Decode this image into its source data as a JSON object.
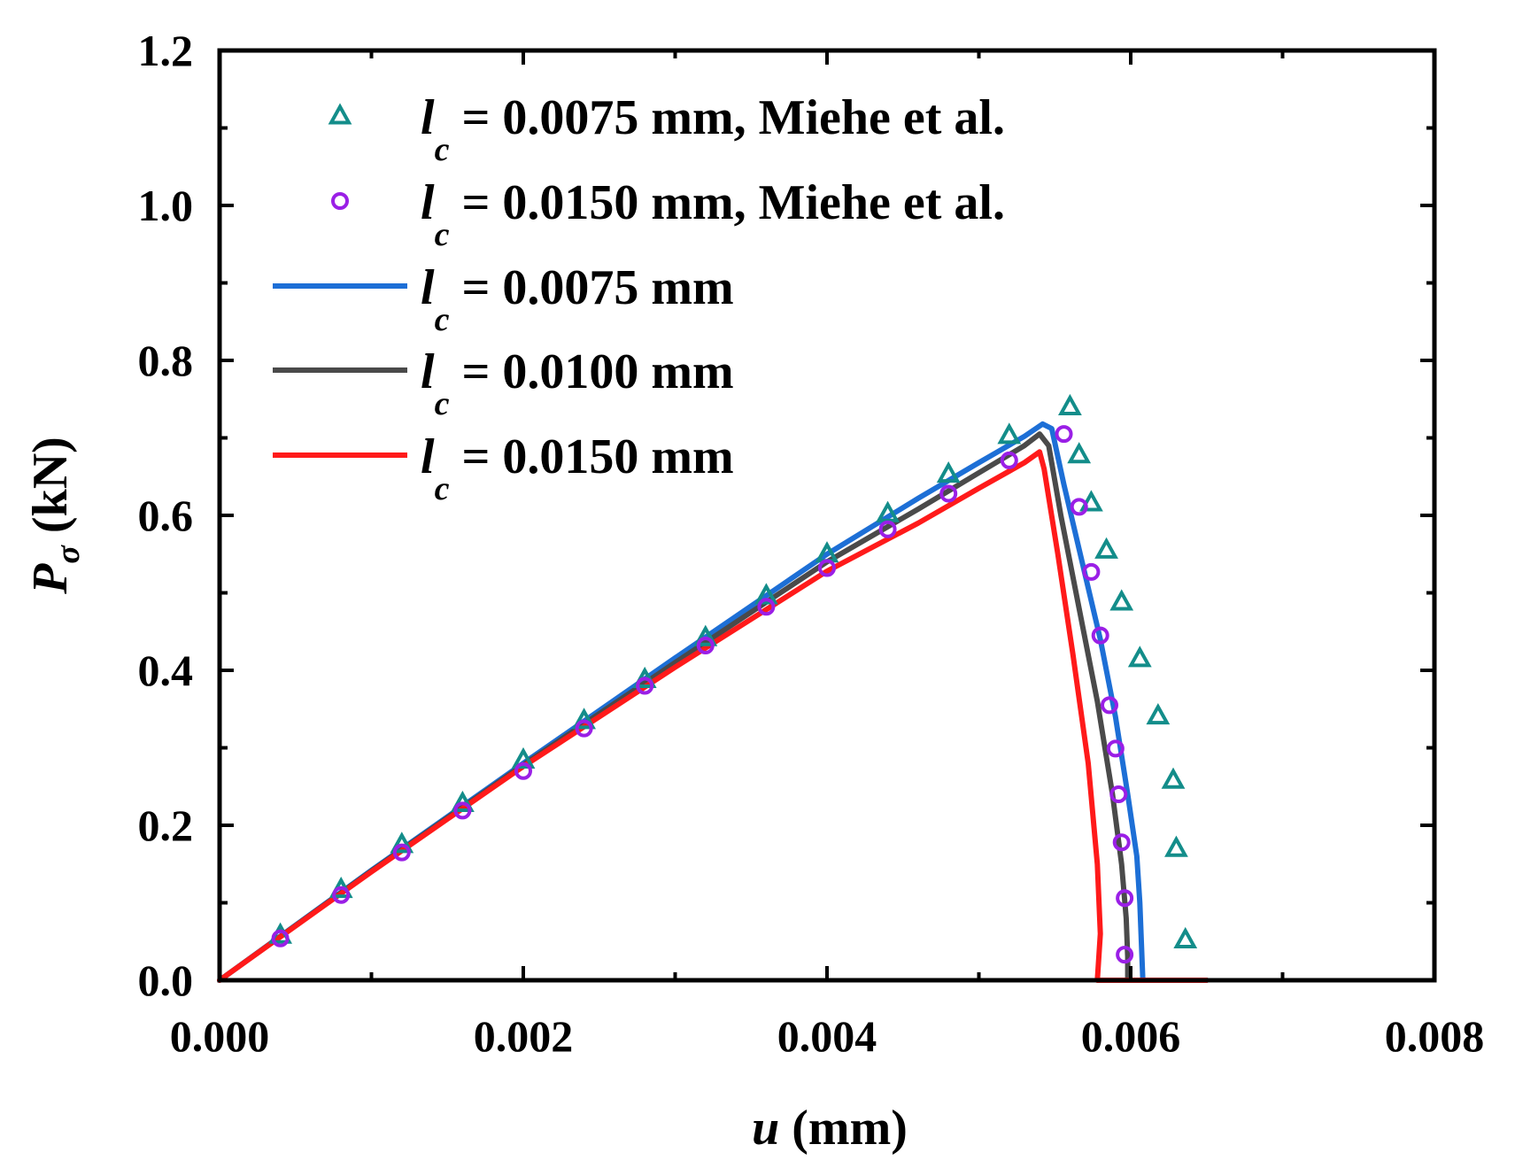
{
  "chart_data": {
    "type": "line",
    "title": "",
    "xlabel": {
      "var": "u",
      "unit": " (mm)"
    },
    "ylabel": {
      "var": "P",
      "sub": "σ",
      "unit": " (kN)"
    },
    "xlim": [
      0,
      0.008
    ],
    "ylim": [
      0,
      1.2
    ],
    "x_major_ticks": [
      0,
      0.002,
      0.004,
      0.006,
      0.008
    ],
    "x_tick_labels": [
      "0.000",
      "0.002",
      "0.004",
      "0.006",
      "0.008"
    ],
    "x_minor_ticks": [
      0.001,
      0.003,
      0.005,
      0.007
    ],
    "y_major_ticks": [
      0,
      0.2,
      0.4,
      0.6,
      0.8,
      1.0,
      1.2
    ],
    "y_tick_labels": [
      "0.0",
      "0.2",
      "0.4",
      "0.6",
      "0.8",
      "1.0",
      "1.2"
    ],
    "y_minor_ticks": [
      0.1,
      0.3,
      0.5,
      0.7,
      0.9,
      1.1
    ],
    "grid": false,
    "legend_position": "top-left",
    "series": [
      {
        "name": "lc_0.0075_miehe",
        "label_var": "l",
        "label_sub": "c",
        "label_text": " = 0.0075 mm, Miehe et al.",
        "kind": "scatter",
        "marker": "triangle",
        "color": "#138d8a",
        "points": [
          [
            0.0004,
            0.058
          ],
          [
            0.0008,
            0.117
          ],
          [
            0.0012,
            0.175
          ],
          [
            0.0016,
            0.228
          ],
          [
            0.002,
            0.284
          ],
          [
            0.0024,
            0.335
          ],
          [
            0.0028,
            0.388
          ],
          [
            0.0032,
            0.442
          ],
          [
            0.0036,
            0.496
          ],
          [
            0.004,
            0.55
          ],
          [
            0.0044,
            0.602
          ],
          [
            0.0048,
            0.653
          ],
          [
            0.0052,
            0.703
          ],
          [
            0.0056,
            0.74
          ],
          [
            0.00566,
            0.678
          ],
          [
            0.00574,
            0.616
          ],
          [
            0.00584,
            0.555
          ],
          [
            0.00594,
            0.488
          ],
          [
            0.00606,
            0.415
          ],
          [
            0.00618,
            0.341
          ],
          [
            0.00628,
            0.258
          ],
          [
            0.0063,
            0.17
          ],
          [
            0.00636,
            0.052
          ]
        ]
      },
      {
        "name": "lc_0.0150_miehe",
        "label_var": "l",
        "label_sub": "c",
        "label_text": " = 0.0150 mm, Miehe et al.",
        "kind": "scatter",
        "marker": "circle",
        "color": "#9a1fe6",
        "points": [
          [
            0.0004,
            0.054
          ],
          [
            0.0008,
            0.11
          ],
          [
            0.0012,
            0.165
          ],
          [
            0.0016,
            0.219
          ],
          [
            0.002,
            0.27
          ],
          [
            0.0024,
            0.325
          ],
          [
            0.0028,
            0.38
          ],
          [
            0.0032,
            0.432
          ],
          [
            0.0036,
            0.482
          ],
          [
            0.004,
            0.532
          ],
          [
            0.0044,
            0.582
          ],
          [
            0.0048,
            0.628
          ],
          [
            0.0052,
            0.671
          ],
          [
            0.00556,
            0.705
          ],
          [
            0.00566,
            0.611
          ],
          [
            0.00574,
            0.527
          ],
          [
            0.0058,
            0.445
          ],
          [
            0.00586,
            0.355
          ],
          [
            0.0059,
            0.299
          ],
          [
            0.00592,
            0.24
          ],
          [
            0.00594,
            0.178
          ],
          [
            0.00596,
            0.106
          ],
          [
            0.00596,
            0.033
          ]
        ]
      },
      {
        "name": "lc_0.0075",
        "label_var": "l",
        "label_sub": "c",
        "label_text": " = 0.0075 mm",
        "kind": "line",
        "color": "#1d6fd6",
        "points": [
          [
            0,
            0
          ],
          [
            0.001,
            0.142
          ],
          [
            0.002,
            0.28
          ],
          [
            0.003,
            0.416
          ],
          [
            0.004,
            0.55
          ],
          [
            0.0046,
            0.622
          ],
          [
            0.005,
            0.668
          ],
          [
            0.0053,
            0.702
          ],
          [
            0.00542,
            0.718
          ],
          [
            0.00548,
            0.712
          ],
          [
            0.00556,
            0.64
          ],
          [
            0.00568,
            0.54
          ],
          [
            0.0058,
            0.44
          ],
          [
            0.0059,
            0.34
          ],
          [
            0.00598,
            0.24
          ],
          [
            0.00604,
            0.16
          ],
          [
            0.00606,
            0.1
          ],
          [
            0.00607,
            0.05
          ],
          [
            0.00608,
            0
          ],
          [
            0.0065,
            0
          ]
        ]
      },
      {
        "name": "lc_0.0100",
        "label_var": "l",
        "label_sub": "c",
        "label_text": " = 0.0100 mm",
        "kind": "line",
        "color": "#4a4a4a",
        "points": [
          [
            0,
            0
          ],
          [
            0.001,
            0.141
          ],
          [
            0.002,
            0.278
          ],
          [
            0.003,
            0.41
          ],
          [
            0.004,
            0.54
          ],
          [
            0.0046,
            0.608
          ],
          [
            0.005,
            0.655
          ],
          [
            0.0053,
            0.69
          ],
          [
            0.0054,
            0.705
          ],
          [
            0.00546,
            0.69
          ],
          [
            0.00554,
            0.6
          ],
          [
            0.00566,
            0.48
          ],
          [
            0.00578,
            0.36
          ],
          [
            0.00588,
            0.24
          ],
          [
            0.00594,
            0.15
          ],
          [
            0.00597,
            0.08
          ],
          [
            0.00598,
            0.03
          ],
          [
            0.00598,
            0
          ],
          [
            0.0065,
            0
          ]
        ]
      },
      {
        "name": "lc_0.0150",
        "label_var": "l",
        "label_sub": "c",
        "label_text": " = 0.0150 mm",
        "kind": "line",
        "color": "#ff1a1a",
        "points": [
          [
            0,
            0
          ],
          [
            0.001,
            0.14
          ],
          [
            0.002,
            0.276
          ],
          [
            0.003,
            0.404
          ],
          [
            0.004,
            0.528
          ],
          [
            0.0046,
            0.59
          ],
          [
            0.005,
            0.635
          ],
          [
            0.0053,
            0.668
          ],
          [
            0.0054,
            0.682
          ],
          [
            0.00543,
            0.66
          ],
          [
            0.00552,
            0.55
          ],
          [
            0.00562,
            0.42
          ],
          [
            0.00572,
            0.28
          ],
          [
            0.00578,
            0.15
          ],
          [
            0.0058,
            0.06
          ],
          [
            0.00578,
            0
          ],
          [
            0.0065,
            0
          ]
        ]
      }
    ]
  }
}
